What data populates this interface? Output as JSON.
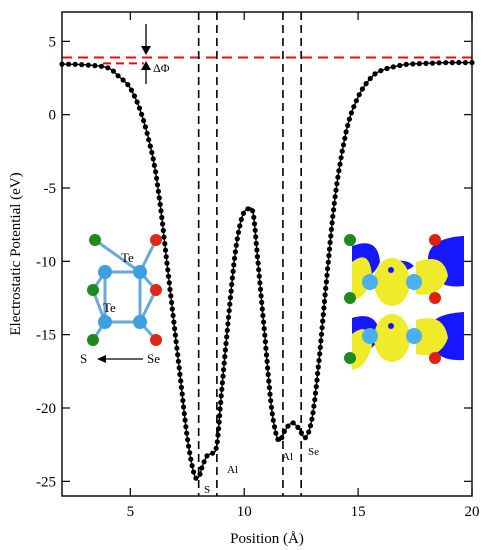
{
  "chart_data": {
    "type": "line",
    "title": "",
    "xlabel": "Position (Å)",
    "ylabel": "Electrostatic Potential (eV)",
    "xlim": [
      2,
      20
    ],
    "ylim": [
      -26,
      7
    ],
    "xticks": [
      5,
      10,
      15,
      20
    ],
    "yticks": [
      5,
      0,
      -5,
      -10,
      -15,
      -20,
      -25
    ],
    "grid": false,
    "series": [
      {
        "color": "#000000",
        "marker": "circle",
        "x": [
          2.0,
          3.0,
          4.0,
          4.5,
          5.0,
          5.5,
          6.0,
          6.3,
          6.6,
          6.9,
          7.2,
          7.5,
          7.8,
          8.0,
          8.2,
          8.4,
          8.6,
          8.8,
          9.0,
          9.3,
          9.6,
          9.9,
          10.2,
          10.4,
          10.6,
          10.9,
          11.2,
          11.5,
          11.8,
          12.1,
          12.4,
          12.7,
          13.0,
          13.3,
          13.6,
          14.0,
          14.5,
          15.0,
          15.5,
          16.0,
          17.0,
          18.0,
          19.0,
          20.0
        ],
        "y": [
          3.45,
          3.4,
          3.2,
          2.6,
          1.8,
          0.0,
          -3.0,
          -6.0,
          -10.0,
          -14.0,
          -18.0,
          -22.0,
          -24.5,
          -24.7,
          -23.8,
          -23.2,
          -23.1,
          -22.5,
          -19.0,
          -14.0,
          -9.5,
          -7.0,
          -6.4,
          -6.8,
          -10.0,
          -15.0,
          -20.0,
          -22.2,
          -21.5,
          -21.0,
          -21.4,
          -22.0,
          -20.5,
          -16.5,
          -11.5,
          -5.5,
          -1.0,
          1.2,
          2.4,
          3.0,
          3.4,
          3.5,
          3.55,
          3.55
        ]
      }
    ],
    "reference_lines": {
      "horizontal_red_dashed": 3.9,
      "short_red_dashed": 3.5,
      "vertical_black_dashed": [
        8.0,
        8.8,
        11.7,
        12.5
      ]
    },
    "annotations": {
      "delta_phi": "ΔΦ",
      "atom_labels": [
        {
          "text": "S",
          "x": 8.05,
          "y": -25.6
        },
        {
          "text": "Al",
          "x": 8.9,
          "y": -24.0
        },
        {
          "text": "Al",
          "x": 11.6,
          "y": -23.2
        },
        {
          "text": "Se",
          "x": 12.7,
          "y": -22.8
        }
      ]
    },
    "inset_left": {
      "labels": [
        "Te",
        "Te",
        "S",
        "Se"
      ],
      "atom_colors": {
        "green": "#1e8a1e",
        "blue": "#3d9fe0",
        "red": "#dc2a1a",
        "bond": "#6aa8dc"
      }
    },
    "inset_right": {
      "colors": {
        "blue": "#1616ff",
        "yellow": "#efea2a",
        "atom_blue": "#4ab0f0",
        "red": "#e02010",
        "green": "#1e8a1e"
      }
    }
  }
}
